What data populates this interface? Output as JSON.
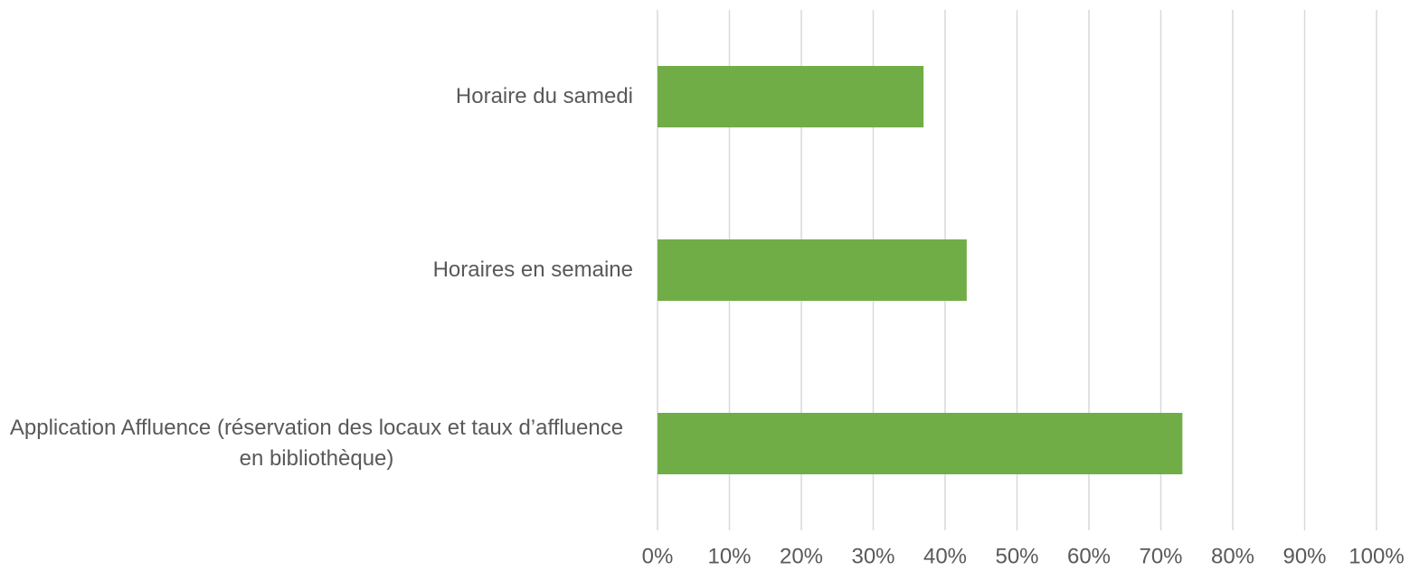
{
  "chart_data": {
    "type": "hbar",
    "categories": [
      "Horaire du samedi",
      "Horaires en semaine",
      "Application Affluence (réservation des locaux et taux d’affluence en bibliothèque)"
    ],
    "values": [
      37,
      43,
      73
    ],
    "color": "#70ad47",
    "xlim": [
      0,
      100
    ],
    "xticks": [
      {
        "value": 0,
        "label": "0%"
      },
      {
        "value": 10,
        "label": "10%"
      },
      {
        "value": 20,
        "label": "20%"
      },
      {
        "value": 30,
        "label": "30%"
      },
      {
        "value": 40,
        "label": "40%"
      },
      {
        "value": 50,
        "label": "50%"
      },
      {
        "value": 60,
        "label": "60%"
      },
      {
        "value": 70,
        "label": "70%"
      },
      {
        "value": 80,
        "label": "80%"
      },
      {
        "value": 90,
        "label": "90%"
      },
      {
        "value": 100,
        "label": "100%"
      }
    ],
    "grid": true
  }
}
